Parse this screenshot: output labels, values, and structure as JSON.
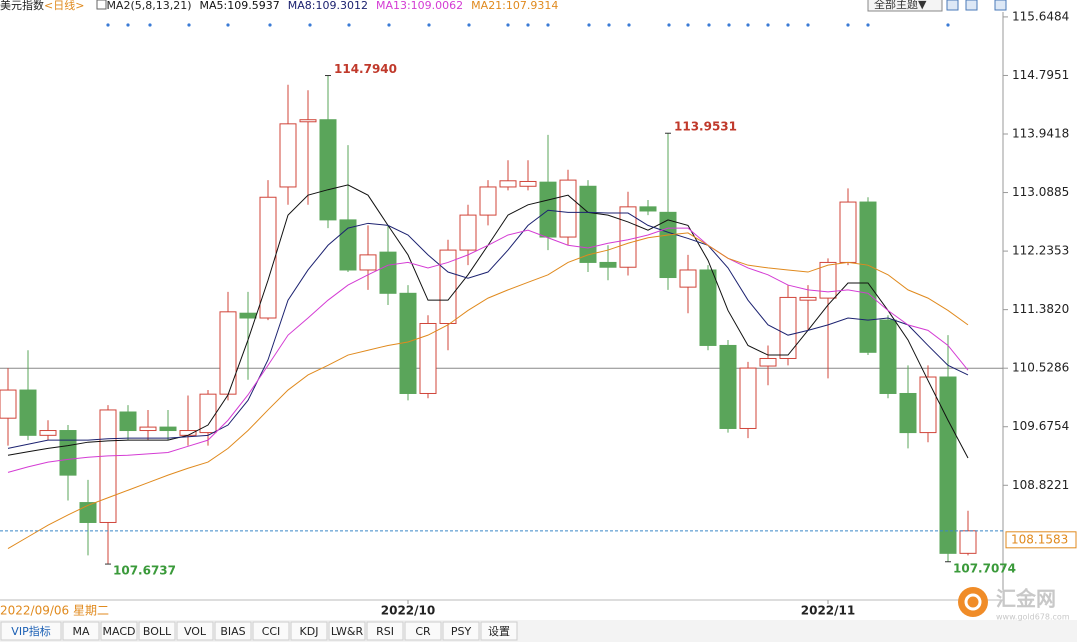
{
  "chart_data": {
    "type": "candlestick",
    "title": "美元指数",
    "subtitle": "<日线>",
    "indicator": "MA2(5,8,13,21)",
    "cursor_date": "2022/09/06 星期二",
    "categories": [
      null,
      null,
      null,
      null,
      null,
      null,
      null,
      null,
      null,
      null,
      null,
      null,
      null,
      null,
      null,
      null,
      null,
      null,
      null,
      null,
      "2022/10",
      null,
      null,
      null,
      null,
      null,
      null,
      null,
      null,
      null,
      null,
      null,
      null,
      null,
      null,
      null,
      null,
      null,
      null,
      null,
      null,
      "2022/11",
      null,
      null,
      null,
      null,
      null,
      null,
      null
    ],
    "open": [
      109.8,
      110.21,
      109.55,
      109.62,
      108.57,
      108.28,
      109.89,
      109.62,
      109.67,
      109.55,
      109.59,
      110.15,
      111.33,
      111.26,
      113.17,
      114.12,
      114.15,
      112.69,
      111.96,
      112.22,
      111.62,
      110.16,
      111.18,
      112.25,
      112.76,
      113.17,
      113.18,
      113.24,
      112.44,
      113.18,
      112.07,
      112.0,
      112.88,
      112.8,
      111.71,
      111.96,
      110.86,
      109.65,
      110.56,
      110.67,
      111.52,
      111.55,
      112.07,
      112.95,
      111.23,
      110.16,
      109.59,
      110.4,
      107.83
    ],
    "high": [
      110.53,
      110.79,
      109.77,
      109.7,
      108.9,
      109.99,
      109.99,
      109.92,
      109.92,
      110.13,
      110.21,
      111.64,
      111.64,
      113.27,
      114.66,
      114.58,
      114.794,
      113.78,
      112.61,
      112.61,
      111.74,
      111.3,
      112.4,
      112.91,
      113.27,
      113.56,
      113.56,
      113.93,
      113.42,
      113.27,
      112.32,
      113.1,
      112.98,
      113.9531,
      112.18,
      112.03,
      110.94,
      110.62,
      110.86,
      111.74,
      111.74,
      112.13,
      113.15,
      113.02,
      111.3,
      110.57,
      110.57,
      111.01,
      108.45
    ],
    "low": [
      109.4,
      109.48,
      109.48,
      108.6,
      107.8,
      107.6737,
      109.48,
      109.48,
      109.48,
      109.4,
      109.4,
      110.06,
      110.36,
      111.23,
      112.91,
      112.91,
      112.57,
      111.93,
      111.67,
      111.45,
      110.06,
      110.09,
      110.79,
      112.03,
      112.61,
      113.12,
      113.12,
      112.25,
      112.32,
      111.93,
      111.81,
      111.88,
      112.76,
      111.67,
      111.33,
      110.79,
      109.59,
      109.51,
      110.28,
      110.57,
      111.08,
      110.38,
      112.03,
      110.72,
      110.09,
      109.36,
      109.45,
      107.7074,
      107.8
    ],
    "close": [
      110.21,
      109.55,
      109.62,
      108.97,
      108.28,
      109.92,
      109.62,
      109.67,
      109.62,
      109.62,
      110.15,
      111.35,
      111.26,
      113.02,
      114.09,
      114.15,
      112.69,
      111.96,
      112.18,
      111.62,
      110.16,
      111.18,
      112.25,
      112.76,
      113.17,
      113.26,
      113.25,
      112.44,
      113.27,
      112.07,
      112.0,
      112.88,
      112.82,
      111.85,
      111.96,
      110.86,
      109.65,
      110.53,
      110.67,
      111.56,
      111.56,
      112.07,
      112.95,
      110.76,
      110.16,
      109.59,
      110.4,
      107.83,
      108.1583
    ],
    "high_labels": [
      null,
      null,
      null,
      null,
      null,
      null,
      null,
      null,
      null,
      null,
      null,
      null,
      null,
      null,
      null,
      null,
      "114.7940",
      null,
      null,
      null,
      null,
      null,
      null,
      null,
      null,
      null,
      null,
      null,
      null,
      null,
      null,
      null,
      null,
      "113.9531",
      null,
      null,
      null,
      null,
      null,
      null,
      null,
      null,
      null,
      null,
      null,
      null,
      null,
      null,
      null
    ],
    "low_labels": [
      null,
      null,
      null,
      null,
      null,
      "107.6737",
      null,
      null,
      null,
      null,
      null,
      null,
      null,
      null,
      null,
      null,
      null,
      null,
      null,
      null,
      null,
      null,
      null,
      null,
      null,
      null,
      null,
      null,
      null,
      null,
      null,
      null,
      null,
      null,
      null,
      null,
      null,
      null,
      null,
      null,
      null,
      null,
      null,
      null,
      null,
      null,
      null,
      "107.7074",
      null
    ],
    "last_label": "108.1583",
    "up_color": "#d0453a",
    "down_color": "#5aa55a",
    "series": [
      {
        "name": "MA5:109.5937",
        "color": "#111111",
        "values": [
          109.26,
          109.31,
          109.36,
          109.4,
          109.45,
          109.47,
          109.48,
          109.48,
          109.48,
          109.55,
          109.7,
          110.14,
          110.94,
          111.81,
          112.76,
          113.05,
          113.13,
          113.2,
          113.05,
          112.61,
          112.18,
          111.52,
          111.52,
          111.89,
          112.32,
          112.76,
          112.91,
          112.98,
          113.05,
          112.8,
          112.76,
          112.66,
          112.54,
          112.69,
          112.61,
          112.1,
          111.37,
          110.86,
          110.72,
          110.72,
          111.08,
          111.45,
          111.77,
          111.77,
          111.37,
          110.94,
          110.35,
          109.77,
          109.22
        ]
      },
      {
        "name": "MA8:109.3012",
        "color": "#1c2270",
        "values": [
          109.36,
          109.42,
          109.48,
          109.48,
          109.48,
          109.5,
          109.51,
          109.51,
          109.51,
          109.53,
          109.55,
          109.7,
          110.06,
          110.65,
          111.52,
          111.96,
          112.32,
          112.57,
          112.64,
          112.61,
          112.47,
          112.18,
          111.93,
          111.84,
          111.93,
          112.25,
          112.61,
          112.83,
          112.8,
          112.8,
          112.79,
          112.79,
          112.61,
          112.51,
          112.42,
          112.32,
          111.99,
          111.52,
          111.16,
          111.01,
          111.08,
          111.16,
          111.26,
          111.23,
          111.26,
          111.16,
          110.86,
          110.57,
          110.43
        ]
      },
      {
        "name": "MA13:109.0062",
        "color": "#d43cd4",
        "values": [
          109.01,
          109.09,
          109.16,
          109.2,
          109.23,
          109.25,
          109.26,
          109.28,
          109.3,
          109.39,
          109.48,
          109.77,
          110.14,
          110.57,
          111.01,
          111.26,
          111.52,
          111.74,
          111.89,
          112.03,
          112.07,
          111.99,
          112.07,
          112.18,
          112.32,
          112.47,
          112.54,
          112.43,
          112.32,
          112.28,
          112.35,
          112.4,
          112.47,
          112.57,
          112.57,
          112.32,
          112.13,
          111.99,
          111.89,
          111.74,
          111.67,
          111.64,
          111.67,
          111.62,
          111.37,
          111.16,
          111.08,
          110.86,
          110.5
        ]
      },
      {
        "name": "MA21:107.9314",
        "color": "#e08a1e",
        "values": [
          107.9,
          108.07,
          108.24,
          108.39,
          108.53,
          108.64,
          108.75,
          108.86,
          108.97,
          109.07,
          109.16,
          109.36,
          109.62,
          109.92,
          110.21,
          110.43,
          110.57,
          110.72,
          110.79,
          110.86,
          110.91,
          111.01,
          111.16,
          111.37,
          111.55,
          111.67,
          111.78,
          111.89,
          112.07,
          112.18,
          112.25,
          112.35,
          112.43,
          112.47,
          112.5,
          112.32,
          112.13,
          112.03,
          111.99,
          111.96,
          111.93,
          112.03,
          112.07,
          112.03,
          111.89,
          111.67,
          111.55,
          111.37,
          111.16
        ]
      }
    ],
    "ylim": [
      107.15,
      115.72
    ],
    "yticks": [
      115.6484,
      114.7951,
      113.9418,
      113.0885,
      112.2353,
      {
        "value": 111.382,
        "label": "111.3820"
      },
      110.5286,
      109.6754,
      108.8221
    ],
    "hline": 110.5286
  },
  "toolbar": {
    "theme_button": "全部主题▼"
  },
  "tabs": [
    "VIP指标",
    "MA",
    "MACD",
    "BOLL",
    "VOL",
    "BIAS",
    "CCI",
    "KDJ",
    "LW&R",
    "RSI",
    "CR",
    "PSY",
    "设置"
  ],
  "watermark": {
    "name": "汇金网",
    "url": "www.gold678.com"
  }
}
